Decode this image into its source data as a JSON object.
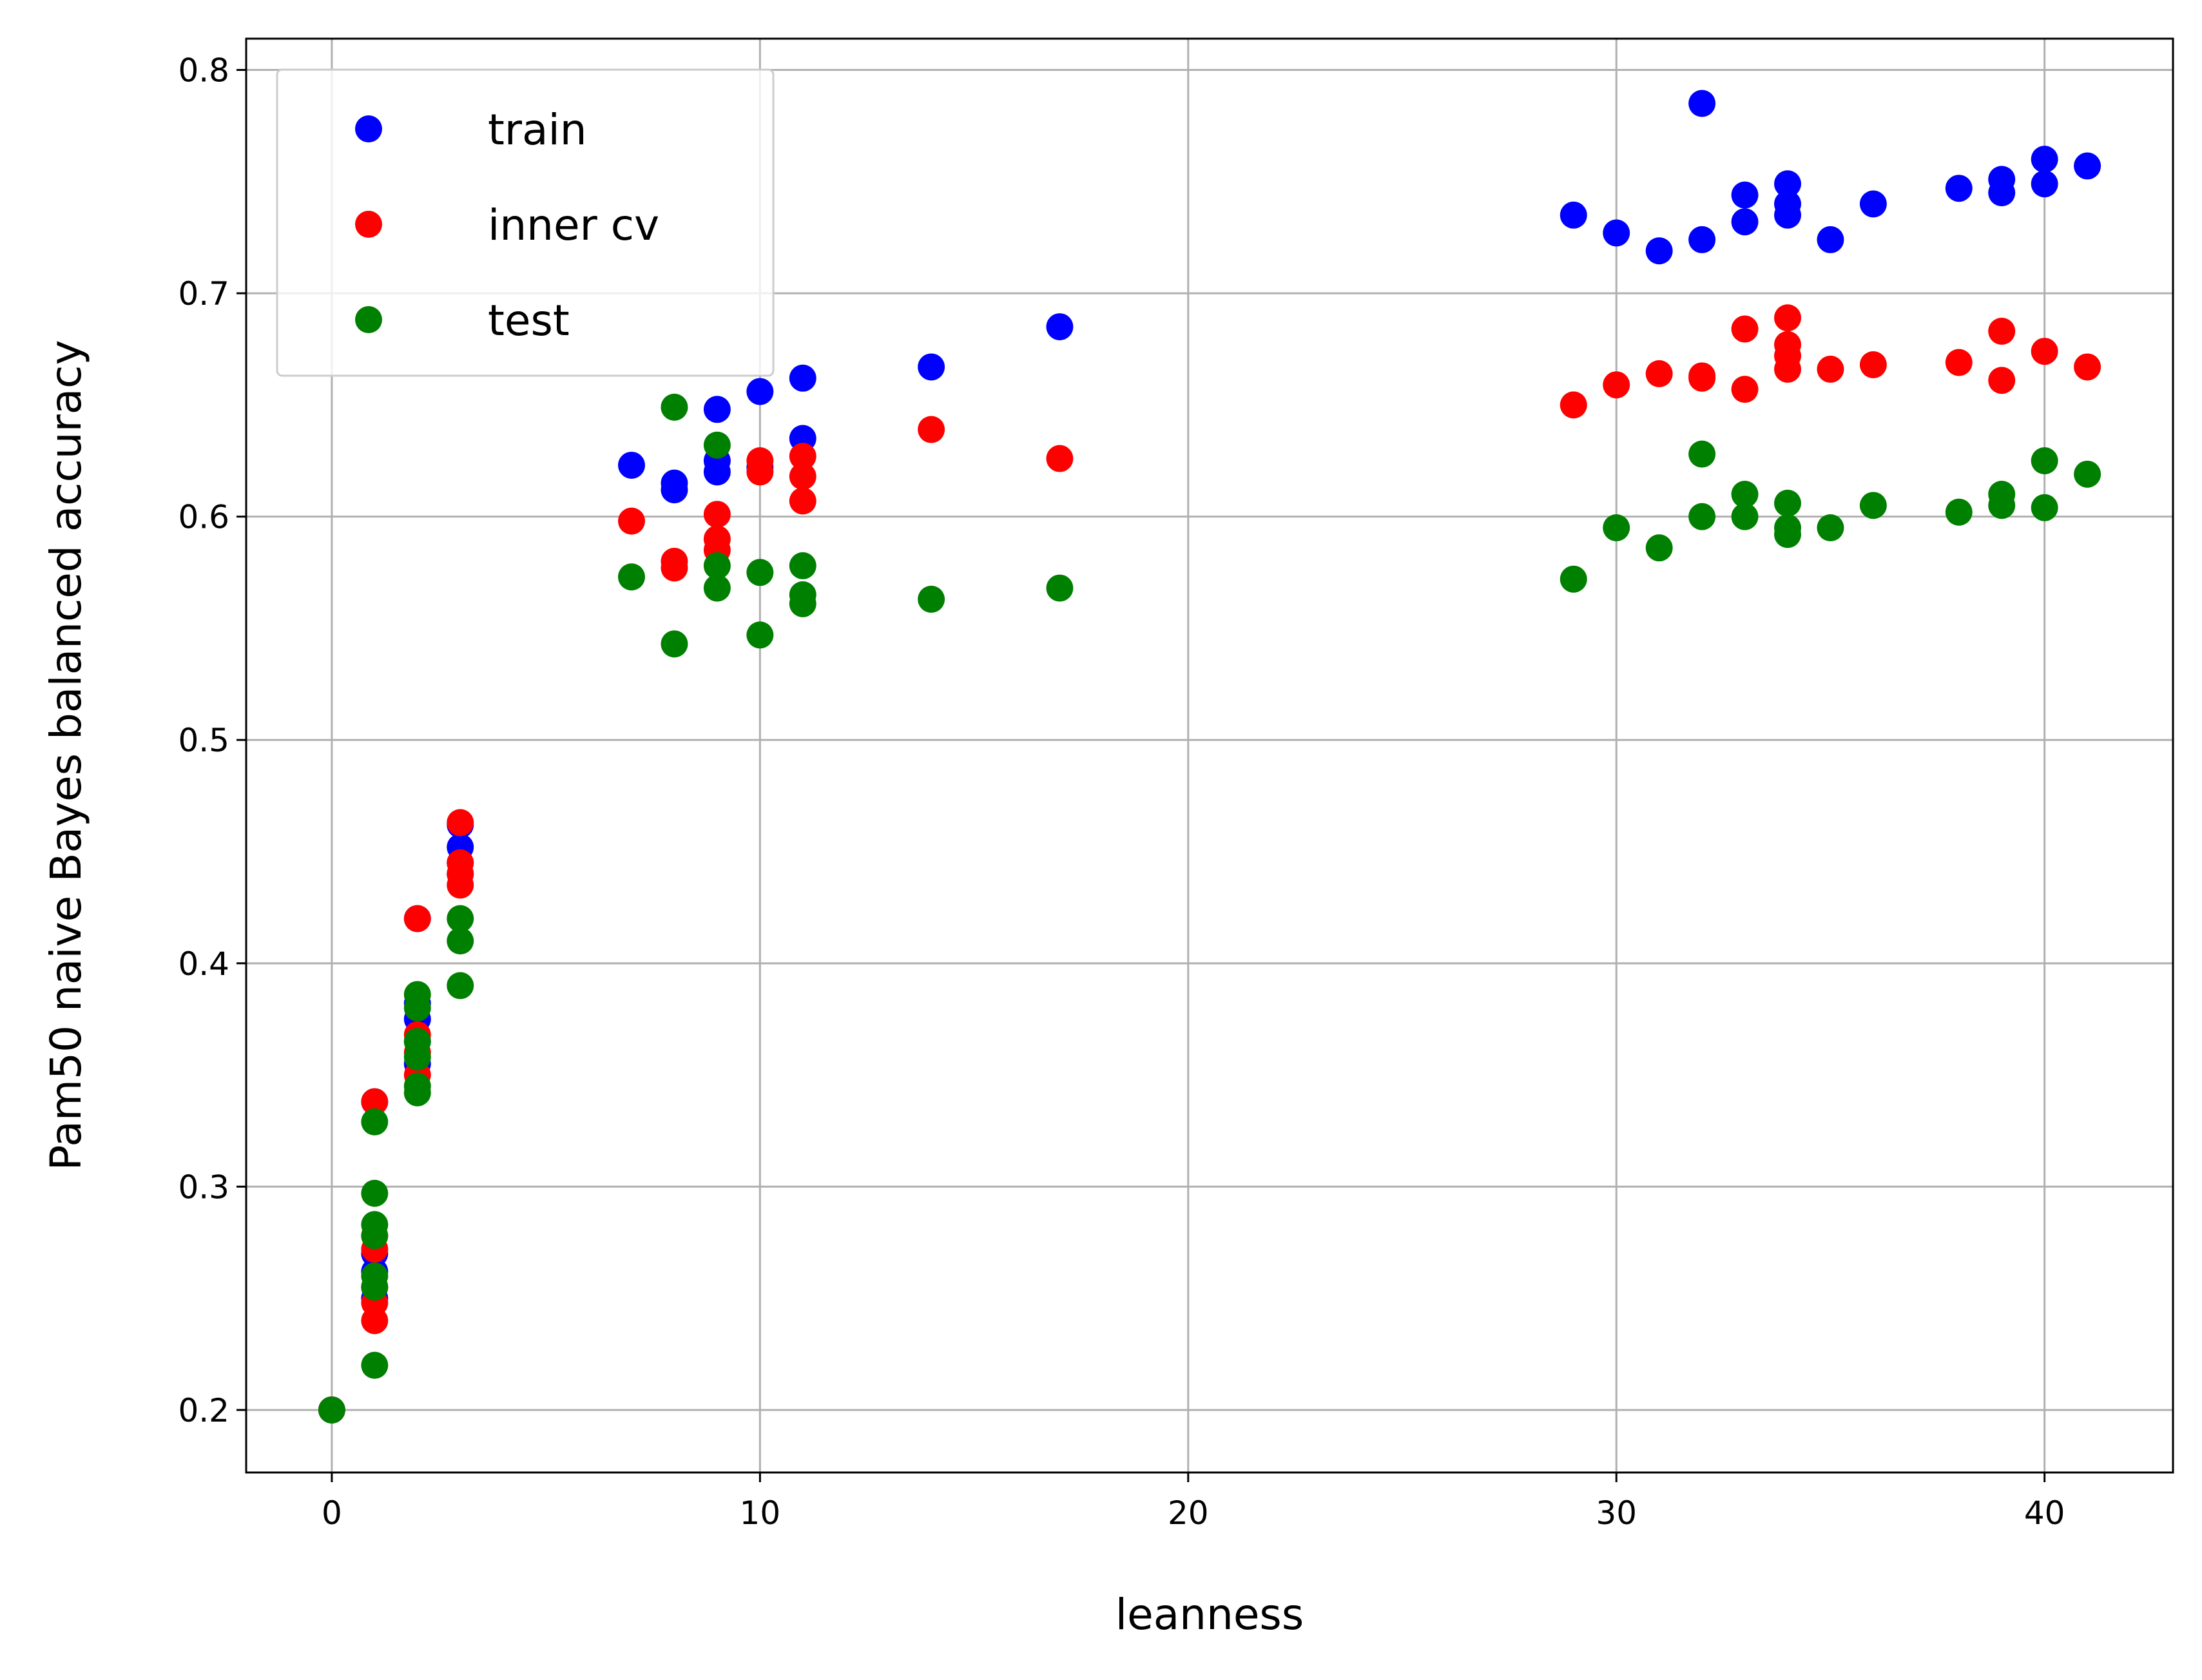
{
  "chart_data": {
    "type": "scatter",
    "xlabel": "leanness",
    "ylabel": "Pam50 naive Bayes balanced accuracy",
    "xlim": [
      -2,
      43
    ],
    "ylim": [
      0.172,
      0.814
    ],
    "xticks": [
      "0",
      "10",
      "20",
      "30",
      "40"
    ],
    "yticks": [
      "0.2",
      "0.3",
      "0.4",
      "0.5",
      "0.6",
      "0.7",
      "0.8"
    ],
    "grid": true,
    "legend_position": "top-left",
    "series": [
      {
        "name": "train",
        "color": "#0000ff",
        "points": [
          [
            0,
            0.2
          ],
          [
            1,
            0.338
          ],
          [
            1,
            0.27
          ],
          [
            1,
            0.262
          ],
          [
            1,
            0.255
          ],
          [
            1,
            0.25
          ],
          [
            2,
            0.42
          ],
          [
            2,
            0.382
          ],
          [
            2,
            0.375
          ],
          [
            2,
            0.365
          ],
          [
            2,
            0.355
          ],
          [
            3,
            0.462
          ],
          [
            3,
            0.452
          ],
          [
            3,
            0.445
          ],
          [
            3,
            0.44
          ],
          [
            7,
            0.623
          ],
          [
            8,
            0.615
          ],
          [
            8,
            0.612
          ],
          [
            9,
            0.648
          ],
          [
            9,
            0.625
          ],
          [
            9,
            0.62
          ],
          [
            10,
            0.656
          ],
          [
            10,
            0.622
          ],
          [
            11,
            0.662
          ],
          [
            11,
            0.635
          ],
          [
            14,
            0.667
          ],
          [
            17,
            0.685
          ],
          [
            29,
            0.735
          ],
          [
            30,
            0.727
          ],
          [
            31,
            0.719
          ],
          [
            32,
            0.785
          ],
          [
            32,
            0.724
          ],
          [
            33,
            0.744
          ],
          [
            33,
            0.732
          ],
          [
            34,
            0.749
          ],
          [
            34,
            0.74
          ],
          [
            34,
            0.735
          ],
          [
            35,
            0.724
          ],
          [
            36,
            0.74
          ],
          [
            38,
            0.747
          ],
          [
            39,
            0.751
          ],
          [
            39,
            0.745
          ],
          [
            40,
            0.76
          ],
          [
            40,
            0.749
          ],
          [
            41,
            0.757
          ]
        ]
      },
      {
        "name": "inner cv",
        "color": "#ff0000",
        "points": [
          [
            0,
            0.2
          ],
          [
            1,
            0.338
          ],
          [
            1,
            0.278
          ],
          [
            1,
            0.272
          ],
          [
            1,
            0.255
          ],
          [
            1,
            0.248
          ],
          [
            1,
            0.24
          ],
          [
            2,
            0.42
          ],
          [
            2,
            0.368
          ],
          [
            2,
            0.36
          ],
          [
            2,
            0.35
          ],
          [
            3,
            0.463
          ],
          [
            3,
            0.445
          ],
          [
            3,
            0.44
          ],
          [
            3,
            0.435
          ],
          [
            7,
            0.598
          ],
          [
            8,
            0.58
          ],
          [
            8,
            0.577
          ],
          [
            9,
            0.601
          ],
          [
            9,
            0.59
          ],
          [
            9,
            0.585
          ],
          [
            10,
            0.625
          ],
          [
            10,
            0.62
          ],
          [
            11,
            0.627
          ],
          [
            11,
            0.618
          ],
          [
            11,
            0.607
          ],
          [
            14,
            0.639
          ],
          [
            17,
            0.626
          ],
          [
            29,
            0.65
          ],
          [
            30,
            0.659
          ],
          [
            31,
            0.664
          ],
          [
            32,
            0.663
          ],
          [
            32,
            0.662
          ],
          [
            33,
            0.684
          ],
          [
            33,
            0.657
          ],
          [
            34,
            0.689
          ],
          [
            34,
            0.677
          ],
          [
            34,
            0.672
          ],
          [
            34,
            0.666
          ],
          [
            35,
            0.666
          ],
          [
            36,
            0.668
          ],
          [
            38,
            0.669
          ],
          [
            39,
            0.683
          ],
          [
            39,
            0.661
          ],
          [
            40,
            0.674
          ],
          [
            41,
            0.667
          ]
        ]
      },
      {
        "name": "test",
        "color": "#008000",
        "points": [
          [
            0,
            0.2
          ],
          [
            1,
            0.329
          ],
          [
            1,
            0.297
          ],
          [
            1,
            0.283
          ],
          [
            1,
            0.278
          ],
          [
            1,
            0.26
          ],
          [
            1,
            0.255
          ],
          [
            1,
            0.22
          ],
          [
            2,
            0.386
          ],
          [
            2,
            0.38
          ],
          [
            2,
            0.365
          ],
          [
            2,
            0.358
          ],
          [
            2,
            0.345
          ],
          [
            2,
            0.342
          ],
          [
            3,
            0.42
          ],
          [
            3,
            0.41
          ],
          [
            3,
            0.39
          ],
          [
            7,
            0.573
          ],
          [
            8,
            0.649
          ],
          [
            8,
            0.543
          ],
          [
            9,
            0.632
          ],
          [
            9,
            0.578
          ],
          [
            9,
            0.568
          ],
          [
            10,
            0.575
          ],
          [
            10,
            0.547
          ],
          [
            11,
            0.578
          ],
          [
            11,
            0.565
          ],
          [
            11,
            0.561
          ],
          [
            14,
            0.563
          ],
          [
            17,
            0.568
          ],
          [
            29,
            0.572
          ],
          [
            30,
            0.595
          ],
          [
            31,
            0.586
          ],
          [
            32,
            0.628
          ],
          [
            32,
            0.6
          ],
          [
            33,
            0.61
          ],
          [
            33,
            0.6
          ],
          [
            34,
            0.606
          ],
          [
            34,
            0.595
          ],
          [
            34,
            0.592
          ],
          [
            35,
            0.595
          ],
          [
            36,
            0.605
          ],
          [
            38,
            0.602
          ],
          [
            39,
            0.61
          ],
          [
            39,
            0.605
          ],
          [
            40,
            0.625
          ],
          [
            40,
            0.604
          ],
          [
            41,
            0.619
          ]
        ]
      }
    ]
  }
}
